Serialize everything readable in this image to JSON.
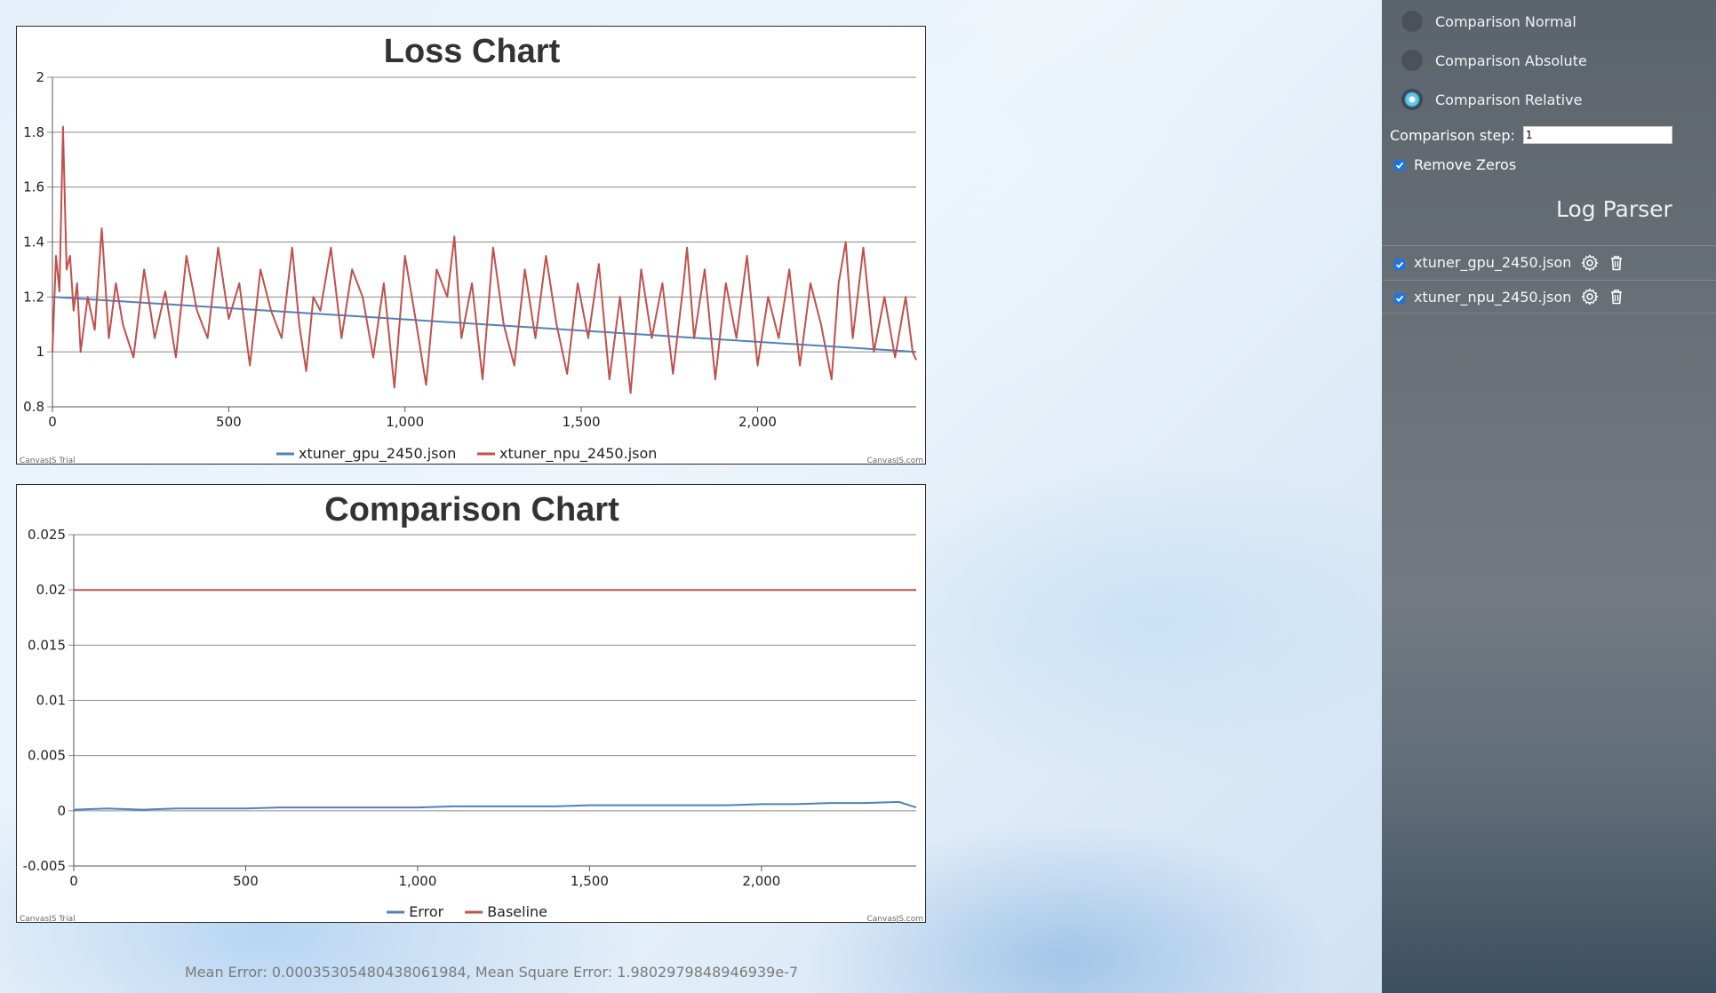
{
  "loss_chart": {
    "title": "Loss Chart",
    "watermark_left": "CanvasJS Trial",
    "watermark_right": "CanvasJS.com",
    "chart_data": {
      "type": "line",
      "title": "Loss Chart",
      "xlim": [
        0,
        2450
      ],
      "ylim": [
        0.8,
        2
      ],
      "x_ticks": [
        0,
        500,
        1000,
        1500,
        2000
      ],
      "x_tick_labels": [
        "0",
        "500",
        "1,000",
        "1,500",
        "2,000"
      ],
      "y_ticks": [
        0.8,
        1,
        1.2,
        1.4,
        1.6,
        1.8,
        2
      ],
      "y_tick_labels": [
        "0.8",
        "1",
        "1.2",
        "1.4",
        "1.6",
        "1.8",
        "2"
      ],
      "grid": true,
      "legend_position": "bottom-center",
      "series": [
        {
          "name": "xtuner_gpu_2450.json",
          "color": "#4f81bc",
          "x": [
            0,
            2450
          ],
          "values": [
            1.2,
            1.0
          ]
        },
        {
          "name": "xtuner_npu_2450.json",
          "color": "#c0504e",
          "x": [
            0,
            10,
            20,
            30,
            40,
            50,
            60,
            70,
            80,
            100,
            120,
            140,
            160,
            180,
            200,
            230,
            260,
            290,
            320,
            350,
            380,
            410,
            440,
            470,
            500,
            530,
            560,
            590,
            620,
            650,
            680,
            700,
            720,
            740,
            760,
            790,
            820,
            850,
            880,
            910,
            940,
            970,
            1000,
            1030,
            1060,
            1090,
            1120,
            1140,
            1160,
            1190,
            1220,
            1250,
            1280,
            1310,
            1340,
            1370,
            1400,
            1430,
            1460,
            1490,
            1520,
            1550,
            1580,
            1610,
            1640,
            1670,
            1700,
            1730,
            1760,
            1790,
            1800,
            1820,
            1850,
            1880,
            1910,
            1940,
            1970,
            2000,
            2030,
            2060,
            2090,
            2120,
            2150,
            2180,
            2210,
            2230,
            2250,
            2270,
            2300,
            2330,
            2360,
            2390,
            2420,
            2440,
            2450
          ],
          "values": [
            1.0,
            1.35,
            1.22,
            1.82,
            1.3,
            1.35,
            1.15,
            1.25,
            1.0,
            1.2,
            1.08,
            1.45,
            1.05,
            1.25,
            1.1,
            0.98,
            1.3,
            1.05,
            1.22,
            0.98,
            1.35,
            1.15,
            1.05,
            1.38,
            1.12,
            1.25,
            0.95,
            1.3,
            1.15,
            1.05,
            1.38,
            1.1,
            0.93,
            1.2,
            1.15,
            1.38,
            1.05,
            1.3,
            1.2,
            0.98,
            1.25,
            0.87,
            1.35,
            1.12,
            0.88,
            1.3,
            1.2,
            1.42,
            1.05,
            1.25,
            0.9,
            1.38,
            1.1,
            0.95,
            1.3,
            1.05,
            1.35,
            1.1,
            0.92,
            1.25,
            1.05,
            1.32,
            0.9,
            1.2,
            0.85,
            1.3,
            1.05,
            1.25,
            0.92,
            1.25,
            1.38,
            1.05,
            1.3,
            0.9,
            1.25,
            1.05,
            1.35,
            0.95,
            1.2,
            1.05,
            1.3,
            0.95,
            1.25,
            1.1,
            0.9,
            1.25,
            1.4,
            1.05,
            1.38,
            1.0,
            1.2,
            0.98,
            1.2,
            1.0,
            0.97
          ]
        }
      ]
    }
  },
  "comparison_chart": {
    "title": "Comparison Chart",
    "watermark_left": "CanvasJS Trial",
    "watermark_right": "CanvasJS.com",
    "chart_data": {
      "type": "line",
      "title": "Comparison Chart",
      "xlim": [
        0,
        2450
      ],
      "ylim": [
        -0.005,
        0.025
      ],
      "x_ticks": [
        0,
        500,
        1000,
        1500,
        2000
      ],
      "x_tick_labels": [
        "0",
        "500",
        "1,000",
        "1,500",
        "2,000"
      ],
      "y_ticks": [
        -0.005,
        0,
        0.005,
        0.01,
        0.015,
        0.02,
        0.025
      ],
      "y_tick_labels": [
        "-0.005",
        "0",
        "0.005",
        "0.01",
        "0.015",
        "0.02",
        "0.025"
      ],
      "grid": true,
      "legend_position": "bottom-center",
      "series": [
        {
          "name": "Error",
          "color": "#4f81bc",
          "x": [
            0,
            100,
            200,
            300,
            400,
            500,
            600,
            700,
            800,
            900,
            1000,
            1100,
            1200,
            1300,
            1400,
            1500,
            1600,
            1700,
            1800,
            1900,
            2000,
            2100,
            2200,
            2300,
            2400,
            2450
          ],
          "values": [
            0.0001,
            0.0002,
            0.0001,
            0.0002,
            0.0002,
            0.0002,
            0.0003,
            0.0003,
            0.0003,
            0.0003,
            0.0003,
            0.0004,
            0.0004,
            0.0004,
            0.0004,
            0.0005,
            0.0005,
            0.0005,
            0.0005,
            0.0005,
            0.0006,
            0.0006,
            0.0007,
            0.0007,
            0.0008,
            0.0003
          ]
        },
        {
          "name": "Baseline",
          "color": "#c0504e",
          "x": [
            0,
            2450
          ],
          "values": [
            0.02,
            0.02
          ]
        }
      ]
    }
  },
  "stats_text": "Mean Error: 0.00035305480438061984, Mean Square Error: 1.9802979848946939e-7",
  "sidebar": {
    "radio_options": [
      {
        "label": "Comparison Normal",
        "checked": false
      },
      {
        "label": "Comparison Absolute",
        "checked": false
      },
      {
        "label": "Comparison Relative",
        "checked": true
      }
    ],
    "step_label": "Comparison step:",
    "step_value": "1",
    "remove_zeros_label": "Remove Zeros",
    "remove_zeros_checked": true,
    "parser_title": "Log Parser",
    "files": [
      {
        "name": "xtuner_gpu_2450.json",
        "checked": true,
        "settings_icon": "gear-icon",
        "delete_icon": "trash-icon"
      },
      {
        "name": "xtuner_npu_2450.json",
        "checked": true,
        "settings_icon": "gear-icon",
        "delete_icon": "trash-icon"
      }
    ]
  }
}
